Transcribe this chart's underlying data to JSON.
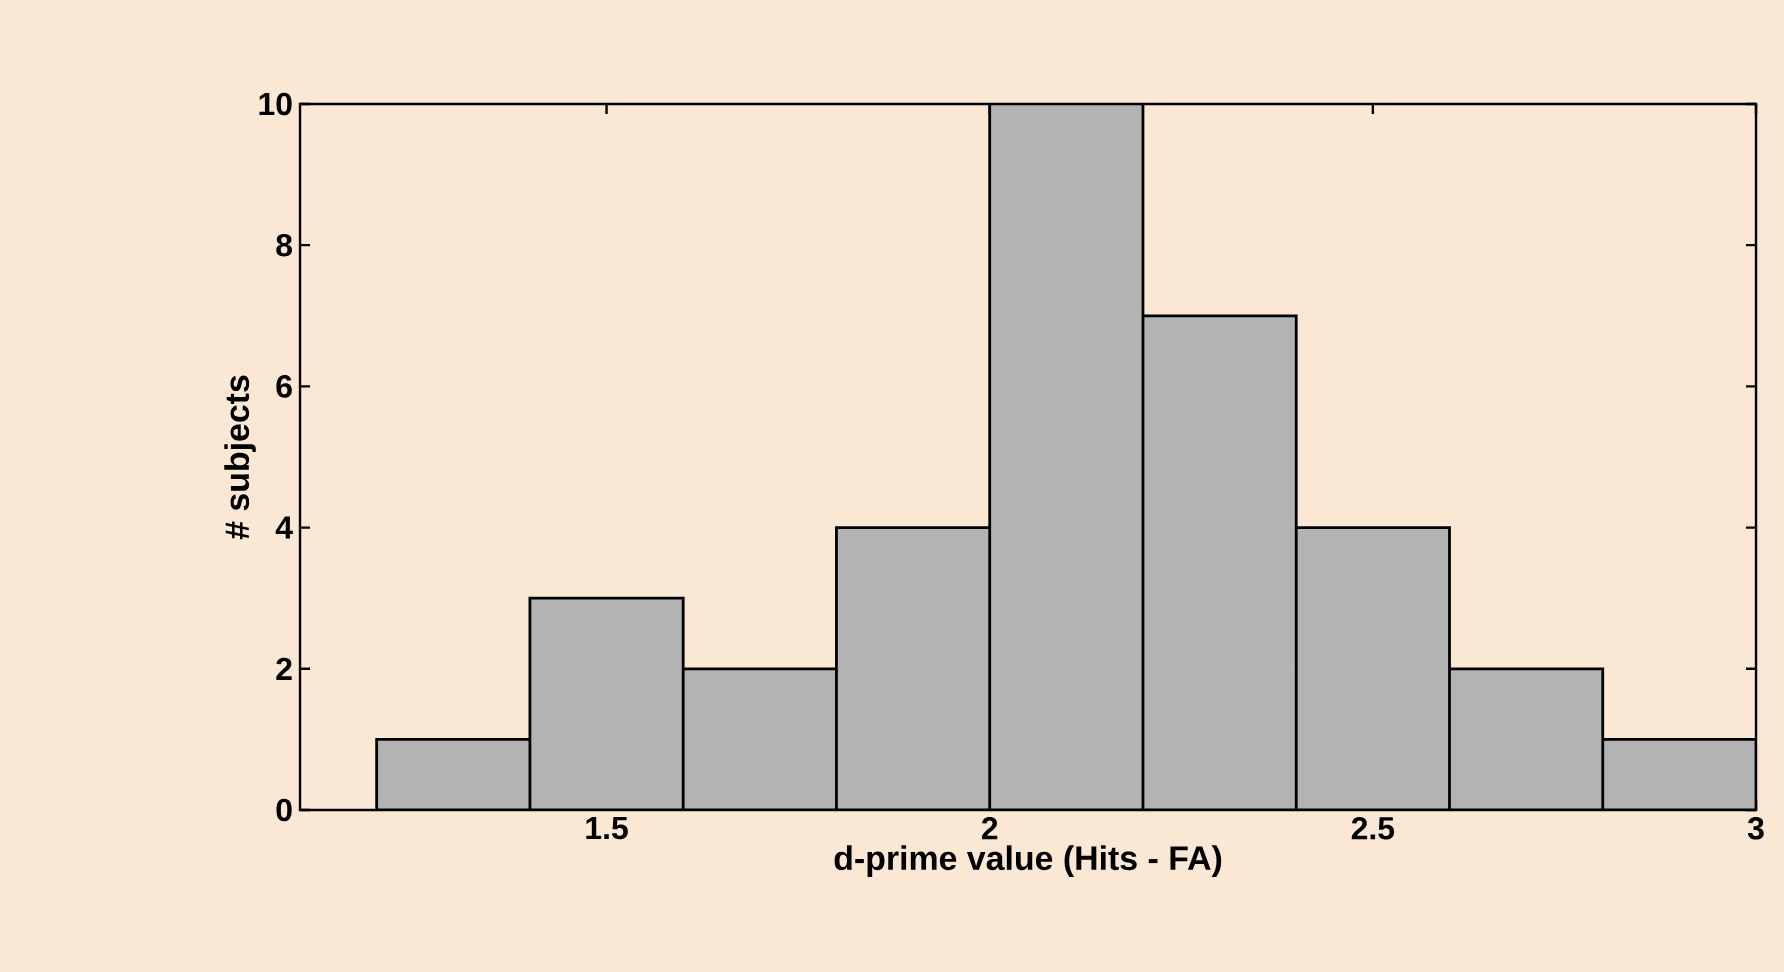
{
  "chart_data": {
    "type": "histogram",
    "xlabel": "d-prime value (Hits - FA)",
    "ylabel": "# subjects",
    "bins": [
      1.2,
      1.4,
      1.6,
      1.8,
      2.0,
      2.2,
      2.4,
      2.6,
      2.8,
      3.0
    ],
    "values": [
      1,
      3,
      2,
      4,
      10,
      7,
      4,
      2,
      1
    ],
    "color": "#b3b3b3",
    "xlim": [
      1.1,
      3.0
    ],
    "xticks": [
      1.5,
      2,
      2.5,
      3
    ],
    "ylim": [
      0,
      10
    ],
    "yticks": [
      0,
      2,
      4,
      6,
      8,
      10
    ]
  }
}
